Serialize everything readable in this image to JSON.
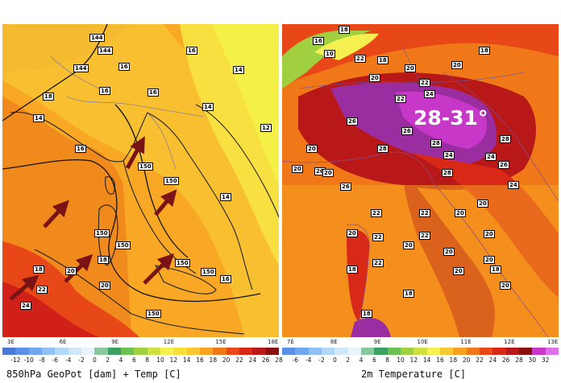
{
  "left_panel": {
    "title": "850hPa GeoPot [dam] + Temp [C]",
    "lon_ticks": [
      "3E",
      "6E",
      "9E",
      "12E",
      "15E",
      "18E"
    ],
    "colorbar_ticks": [
      "-12",
      "-10",
      "-8",
      "-6",
      "-4",
      "-2",
      "0",
      "2",
      "4",
      "6",
      "8",
      "10",
      "12",
      "14",
      "16",
      "18",
      "20",
      "22",
      "24",
      "26",
      "28"
    ],
    "colorbar_colors": [
      "#4a78d8",
      "#5a90e6",
      "#70a8f0",
      "#90c0f4",
      "#b4d8f8",
      "#d0e8fa",
      "#e8f4fc",
      "#8ac8a0",
      "#3ca060",
      "#6ac050",
      "#a0d040",
      "#d0e040",
      "#f4f050",
      "#f8e038",
      "#f8c830",
      "#f8a020",
      "#f07818",
      "#e84818",
      "#d82818",
      "#b81818",
      "#8a1010"
    ],
    "contour_labels": [
      "144",
      "144",
      "144",
      "16",
      "16",
      "14",
      "14",
      "12",
      "18",
      "14",
      "16",
      "16",
      "16",
      "150",
      "150",
      "150",
      "150",
      "150",
      "18",
      "18",
      "20",
      "22",
      "24",
      "20",
      "150",
      "150",
      "16",
      "14"
    ]
  },
  "right_panel": {
    "title": "2m Temperature [C]",
    "lon_ticks": [
      "7E",
      "8E",
      "9E",
      "10E",
      "11E",
      "12E",
      "13E"
    ],
    "colorbar_ticks": [
      "-6",
      "-4",
      "-2",
      "0",
      "2",
      "4",
      "6",
      "8",
      "10",
      "12",
      "14",
      "16",
      "18",
      "20",
      "22",
      "24",
      "26",
      "28",
      "30",
      "32"
    ],
    "colorbar_colors": [
      "#5a90e6",
      "#70a8f0",
      "#90c0f4",
      "#b4d8f8",
      "#d0e8fa",
      "#e8f4fc",
      "#8ac8a0",
      "#3ca060",
      "#6ac050",
      "#a0d040",
      "#d0e040",
      "#f4f050",
      "#f8c830",
      "#f8a020",
      "#f07818",
      "#e84818",
      "#d82818",
      "#b81818",
      "#8a1010",
      "#c838c8",
      "#e070e8"
    ],
    "highlight_text": "28-31°",
    "point_labels": [
      "18",
      "16",
      "10",
      "22",
      "18",
      "20",
      "20",
      "18",
      "20",
      "22",
      "24",
      "22",
      "26",
      "26",
      "20",
      "28",
      "28",
      "20",
      "26",
      "28",
      "24",
      "20",
      "26",
      "28",
      "24",
      "26",
      "24",
      "20",
      "22",
      "20",
      "22",
      "22",
      "20",
      "22",
      "20",
      "20",
      "18",
      "20",
      "18",
      "22",
      "20",
      "20",
      "20",
      "18",
      "18"
    ]
  }
}
